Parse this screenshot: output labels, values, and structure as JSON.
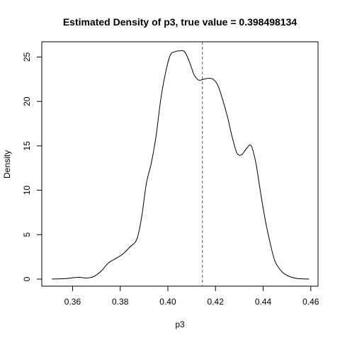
{
  "chart_data": {
    "type": "line",
    "title": "Estimated Density of p3, true value = 0.398498134",
    "xlabel": "p3",
    "ylabel": "Density",
    "xlim": [
      0.35,
      0.46
    ],
    "ylim": [
      0,
      26
    ],
    "x_ticks": [
      0.36,
      0.38,
      0.4,
      0.42,
      0.44,
      0.46
    ],
    "x_tick_labels": [
      "0.36",
      "0.38",
      "0.40",
      "0.42",
      "0.44",
      "0.46"
    ],
    "y_ticks": [
      0,
      5,
      10,
      15,
      20,
      25
    ],
    "y_tick_labels": [
      "0",
      "5",
      "10",
      "15",
      "20",
      "25"
    ],
    "grid": false,
    "legend": "none",
    "reference_line": {
      "x": 0.4145,
      "style": "dashed"
    },
    "series": [
      {
        "x": [
          0.3513,
          0.355,
          0.358,
          0.361,
          0.363,
          0.366,
          0.369,
          0.372,
          0.375,
          0.378,
          0.381,
          0.384,
          0.387,
          0.389,
          0.391,
          0.393,
          0.395,
          0.397,
          0.399,
          0.401,
          0.403,
          0.405,
          0.407,
          0.409,
          0.411,
          0.413,
          0.415,
          0.417,
          0.419,
          0.421,
          0.423,
          0.425,
          0.427,
          0.429,
          0.431,
          0.433,
          0.435,
          0.437,
          0.439,
          0.441,
          0.443,
          0.445,
          0.448,
          0.451,
          0.454,
          0.457,
          0.4593
        ],
        "values": [
          0.01,
          0.03,
          0.08,
          0.18,
          0.2,
          0.12,
          0.3,
          0.9,
          1.8,
          2.3,
          2.8,
          3.6,
          4.5,
          7.0,
          10.8,
          13.0,
          16.0,
          20.2,
          23.2,
          25.2,
          25.6,
          25.7,
          25.6,
          24.5,
          23.0,
          22.4,
          22.5,
          22.6,
          22.5,
          21.8,
          20.2,
          18.3,
          16.0,
          14.2,
          14.0,
          14.7,
          15.0,
          13.0,
          9.6,
          6.5,
          4.0,
          2.0,
          0.8,
          0.3,
          0.08,
          0.02,
          0.01
        ]
      }
    ]
  }
}
